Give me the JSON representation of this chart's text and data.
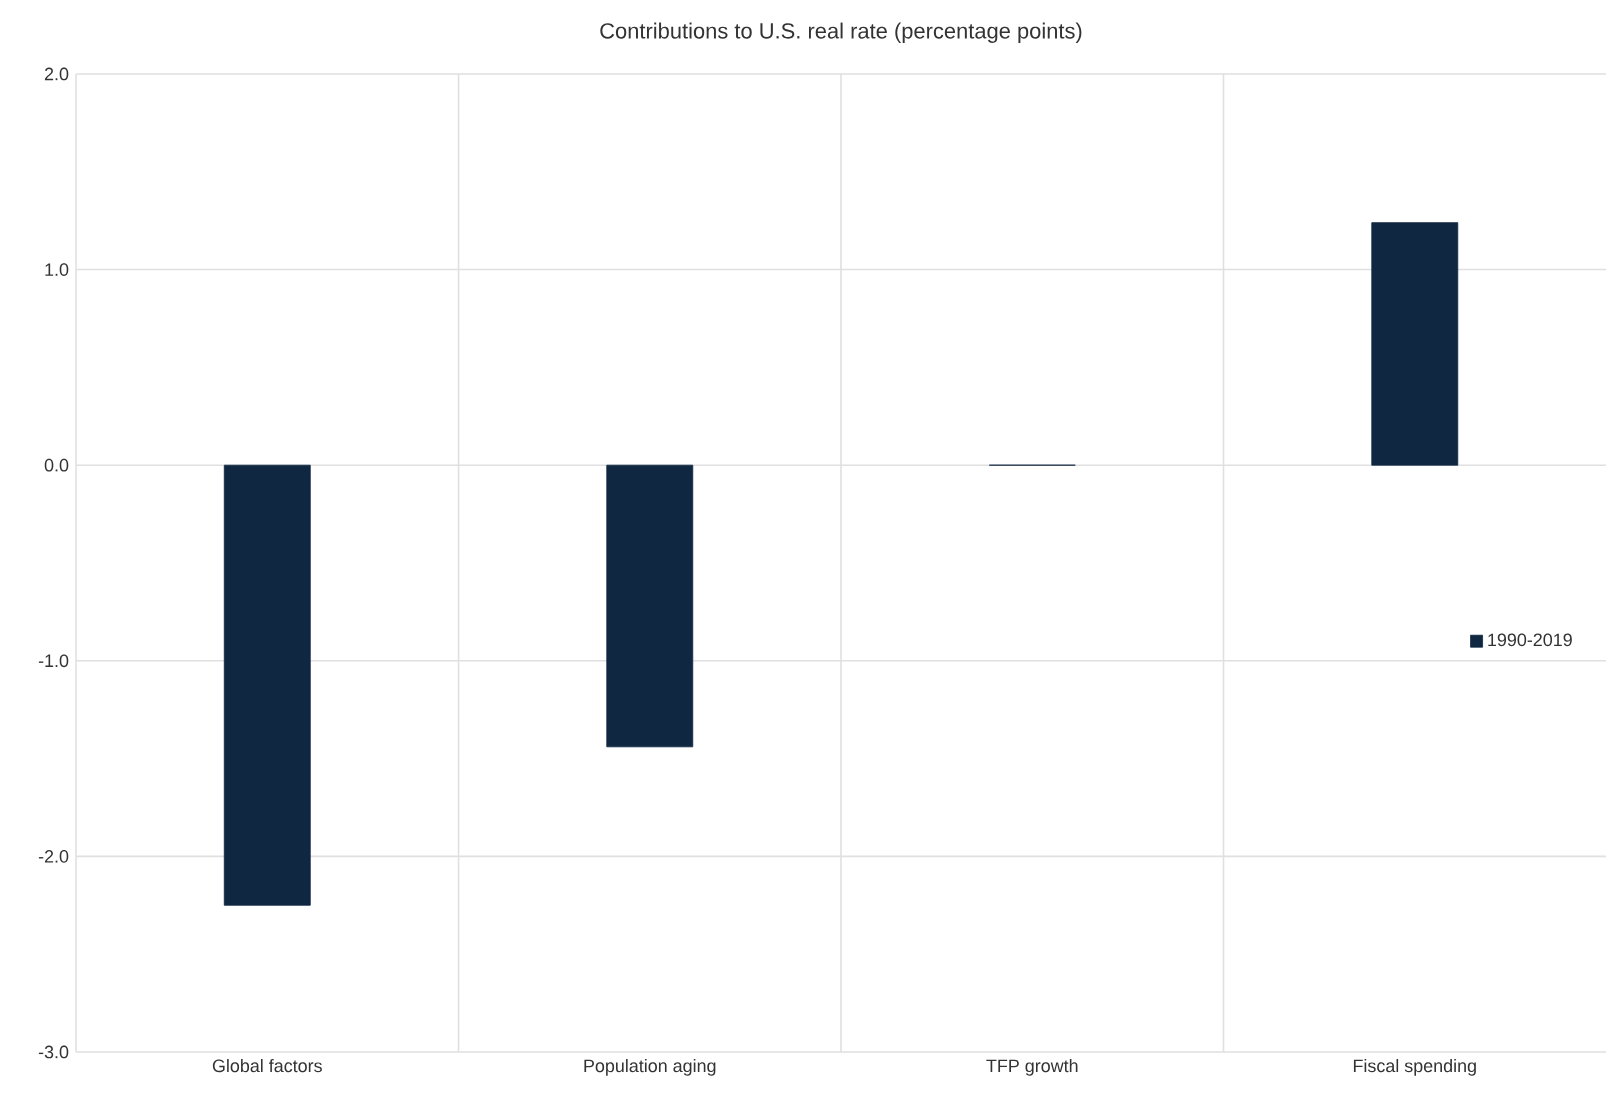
{
  "chart_data": {
    "type": "bar",
    "title": "Contributions to U.S. real rate (percentage points)",
    "categories": [
      "Global factors",
      "Population aging",
      "TFP growth",
      "Fiscal spending"
    ],
    "series": [
      {
        "name": "1990-2019",
        "color": "#0f2741",
        "values": [
          -2.25,
          -1.44,
          0,
          1.24
        ]
      }
    ],
    "ylim": [
      -3,
      2
    ],
    "yticks": [
      {
        "value": -3,
        "label": "-3.0"
      },
      {
        "value": -2,
        "label": "-2.0"
      },
      {
        "value": -1,
        "label": "-1.0"
      },
      {
        "value": 0,
        "label": "0.0"
      },
      {
        "value": 1,
        "label": "1.0"
      },
      {
        "value": 2,
        "label": "2.0"
      }
    ],
    "grid": true,
    "legend": "right"
  }
}
